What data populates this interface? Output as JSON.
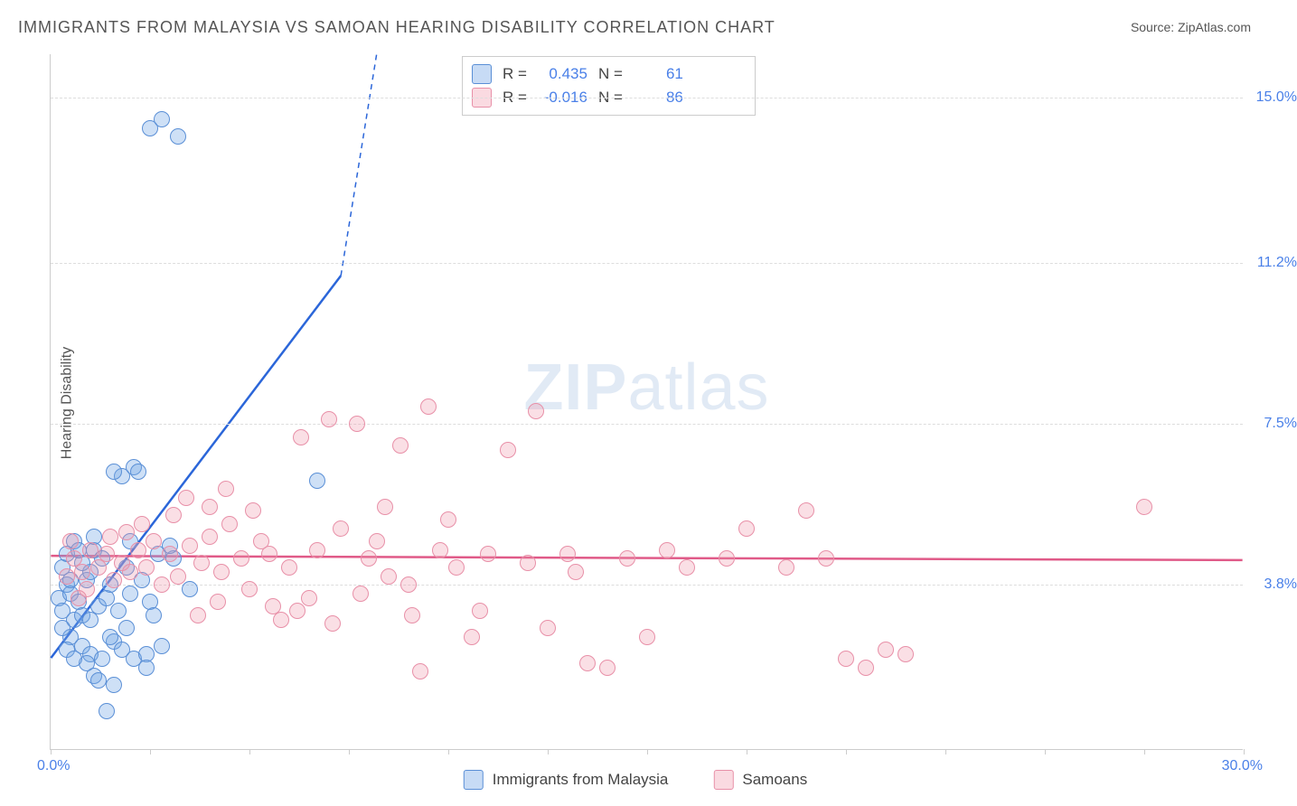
{
  "title": "IMMIGRANTS FROM MALAYSIA VS SAMOAN HEARING DISABILITY CORRELATION CHART",
  "source_prefix": "Source: ",
  "source_name": "ZipAtlas.com",
  "watermark_bold": "ZIP",
  "watermark_light": "atlas",
  "y_axis_label": "Hearing Disability",
  "x_min_label": "0.0%",
  "x_max_label": "30.0%",
  "chart": {
    "type": "scatter",
    "background_color": "#ffffff",
    "grid_color": "#dddddd",
    "xlim": [
      0,
      30
    ],
    "ylim": [
      0,
      16
    ],
    "y_ticks": [
      {
        "value": 3.8,
        "label": "3.8%"
      },
      {
        "value": 7.5,
        "label": "7.5%"
      },
      {
        "value": 11.2,
        "label": "11.2%"
      },
      {
        "value": 15.0,
        "label": "15.0%"
      }
    ],
    "x_tick_positions": [
      0,
      2.5,
      5,
      7.5,
      10,
      12.5,
      15,
      17.5,
      20,
      22.5,
      25,
      27.5,
      30
    ],
    "series": [
      {
        "name": "Immigrants from Malaysia",
        "color_fill": "rgba(115,165,230,0.35)",
        "color_stroke": "#5a8fd6",
        "r_label": "R =",
        "r_value": "0.435",
        "n_label": "N =",
        "n_value": "61",
        "trend": {
          "x1": 0,
          "y1": 2.1,
          "x2": 8.2,
          "y2": 16,
          "color": "#2b66d9",
          "width": 2.5,
          "extend_dashed": true,
          "solid_end_x": 7.3,
          "solid_end_y": 10.9
        },
        "points": [
          [
            0.2,
            3.5
          ],
          [
            0.3,
            3.2
          ],
          [
            0.4,
            3.8
          ],
          [
            0.3,
            4.2
          ],
          [
            0.5,
            3.6
          ],
          [
            0.6,
            3.0
          ],
          [
            0.7,
            3.4
          ],
          [
            0.4,
            4.5
          ],
          [
            0.8,
            3.1
          ],
          [
            0.5,
            2.6
          ],
          [
            0.9,
            3.9
          ],
          [
            1.0,
            4.1
          ],
          [
            0.6,
            4.8
          ],
          [
            1.2,
            3.3
          ],
          [
            0.8,
            2.4
          ],
          [
            1.0,
            2.2
          ],
          [
            1.1,
            4.6
          ],
          [
            1.4,
            3.5
          ],
          [
            0.9,
            2.0
          ],
          [
            1.3,
            2.1
          ],
          [
            1.5,
            3.8
          ],
          [
            1.1,
            1.7
          ],
          [
            1.7,
            3.2
          ],
          [
            1.6,
            2.5
          ],
          [
            1.8,
            2.3
          ],
          [
            2.0,
            3.6
          ],
          [
            1.9,
            4.2
          ],
          [
            2.1,
            2.1
          ],
          [
            2.3,
            3.9
          ],
          [
            1.6,
            1.5
          ],
          [
            2.5,
            3.4
          ],
          [
            2.4,
            2.2
          ],
          [
            0.3,
            2.8
          ],
          [
            0.4,
            2.3
          ],
          [
            0.6,
            2.1
          ],
          [
            0.8,
            4.3
          ],
          [
            1.0,
            3.0
          ],
          [
            1.3,
            4.4
          ],
          [
            1.5,
            2.6
          ],
          [
            1.2,
            1.6
          ],
          [
            2.7,
            4.5
          ],
          [
            2.0,
            4.8
          ],
          [
            1.8,
            6.3
          ],
          [
            2.1,
            6.5
          ],
          [
            2.2,
            6.4
          ],
          [
            1.6,
            6.4
          ],
          [
            2.5,
            14.3
          ],
          [
            2.8,
            14.5
          ],
          [
            3.2,
            14.1
          ],
          [
            1.4,
            0.9
          ],
          [
            3.1,
            4.4
          ],
          [
            3.5,
            3.7
          ],
          [
            6.7,
            6.2
          ],
          [
            2.8,
            2.4
          ],
          [
            2.4,
            1.9
          ],
          [
            1.9,
            2.8
          ],
          [
            0.5,
            3.9
          ],
          [
            0.7,
            4.6
          ],
          [
            1.1,
            4.9
          ],
          [
            3.0,
            4.7
          ],
          [
            2.6,
            3.1
          ]
        ]
      },
      {
        "name": "Samoans",
        "color_fill": "rgba(240,150,170,0.3)",
        "color_stroke": "#e890a8",
        "r_label": "R =",
        "r_value": "-0.016",
        "n_label": "N =",
        "n_value": "86",
        "trend": {
          "x1": 0,
          "y1": 4.45,
          "x2": 30,
          "y2": 4.35,
          "color": "#e05a88",
          "width": 2.5
        },
        "points": [
          [
            0.4,
            4.0
          ],
          [
            0.6,
            4.4
          ],
          [
            0.8,
            4.1
          ],
          [
            1.0,
            4.6
          ],
          [
            1.2,
            4.2
          ],
          [
            0.5,
            4.8
          ],
          [
            0.9,
            3.7
          ],
          [
            1.4,
            4.5
          ],
          [
            1.6,
            3.9
          ],
          [
            1.8,
            4.3
          ],
          [
            1.5,
            4.9
          ],
          [
            2.0,
            4.1
          ],
          [
            2.2,
            4.6
          ],
          [
            1.9,
            5.0
          ],
          [
            2.4,
            4.2
          ],
          [
            2.6,
            4.8
          ],
          [
            2.8,
            3.8
          ],
          [
            3.0,
            4.5
          ],
          [
            2.3,
            5.2
          ],
          [
            3.2,
            4.0
          ],
          [
            3.5,
            4.7
          ],
          [
            3.1,
            5.4
          ],
          [
            3.8,
            4.3
          ],
          [
            4.0,
            4.9
          ],
          [
            3.4,
            5.8
          ],
          [
            4.3,
            4.1
          ],
          [
            4.5,
            5.2
          ],
          [
            4.0,
            5.6
          ],
          [
            4.8,
            4.4
          ],
          [
            5.0,
            3.7
          ],
          [
            4.4,
            6.0
          ],
          [
            5.3,
            4.8
          ],
          [
            5.6,
            3.3
          ],
          [
            5.1,
            5.5
          ],
          [
            6.0,
            4.2
          ],
          [
            6.3,
            7.2
          ],
          [
            5.8,
            3.0
          ],
          [
            6.7,
            4.6
          ],
          [
            7.0,
            7.6
          ],
          [
            6.5,
            3.5
          ],
          [
            7.3,
            5.1
          ],
          [
            7.7,
            7.5
          ],
          [
            7.1,
            2.9
          ],
          [
            8.0,
            4.4
          ],
          [
            8.4,
            5.6
          ],
          [
            7.8,
            3.6
          ],
          [
            8.8,
            7.0
          ],
          [
            9.1,
            3.1
          ],
          [
            8.5,
            4.0
          ],
          [
            9.5,
            7.9
          ],
          [
            9.8,
            4.6
          ],
          [
            9.3,
            1.8
          ],
          [
            10.2,
            4.2
          ],
          [
            10.6,
            2.6
          ],
          [
            10.0,
            5.3
          ],
          [
            11.0,
            4.5
          ],
          [
            11.5,
            6.9
          ],
          [
            10.8,
            3.2
          ],
          [
            12.0,
            4.3
          ],
          [
            12.5,
            2.8
          ],
          [
            12.2,
            7.8
          ],
          [
            13.0,
            4.5
          ],
          [
            13.5,
            2.0
          ],
          [
            13.2,
            4.1
          ],
          [
            14.0,
            1.9
          ],
          [
            14.5,
            4.4
          ],
          [
            15.0,
            2.6
          ],
          [
            16.0,
            4.2
          ],
          [
            17.0,
            4.4
          ],
          [
            17.5,
            5.1
          ],
          [
            18.5,
            4.2
          ],
          [
            19.0,
            5.5
          ],
          [
            19.5,
            4.4
          ],
          [
            20.0,
            2.1
          ],
          [
            20.5,
            1.9
          ],
          [
            21.0,
            2.3
          ],
          [
            21.5,
            2.2
          ],
          [
            15.5,
            4.6
          ],
          [
            8.2,
            4.8
          ],
          [
            9.0,
            3.8
          ],
          [
            6.2,
            3.2
          ],
          [
            5.5,
            4.5
          ],
          [
            4.2,
            3.4
          ],
          [
            3.7,
            3.1
          ],
          [
            27.5,
            5.6
          ],
          [
            0.7,
            3.5
          ]
        ]
      }
    ]
  }
}
